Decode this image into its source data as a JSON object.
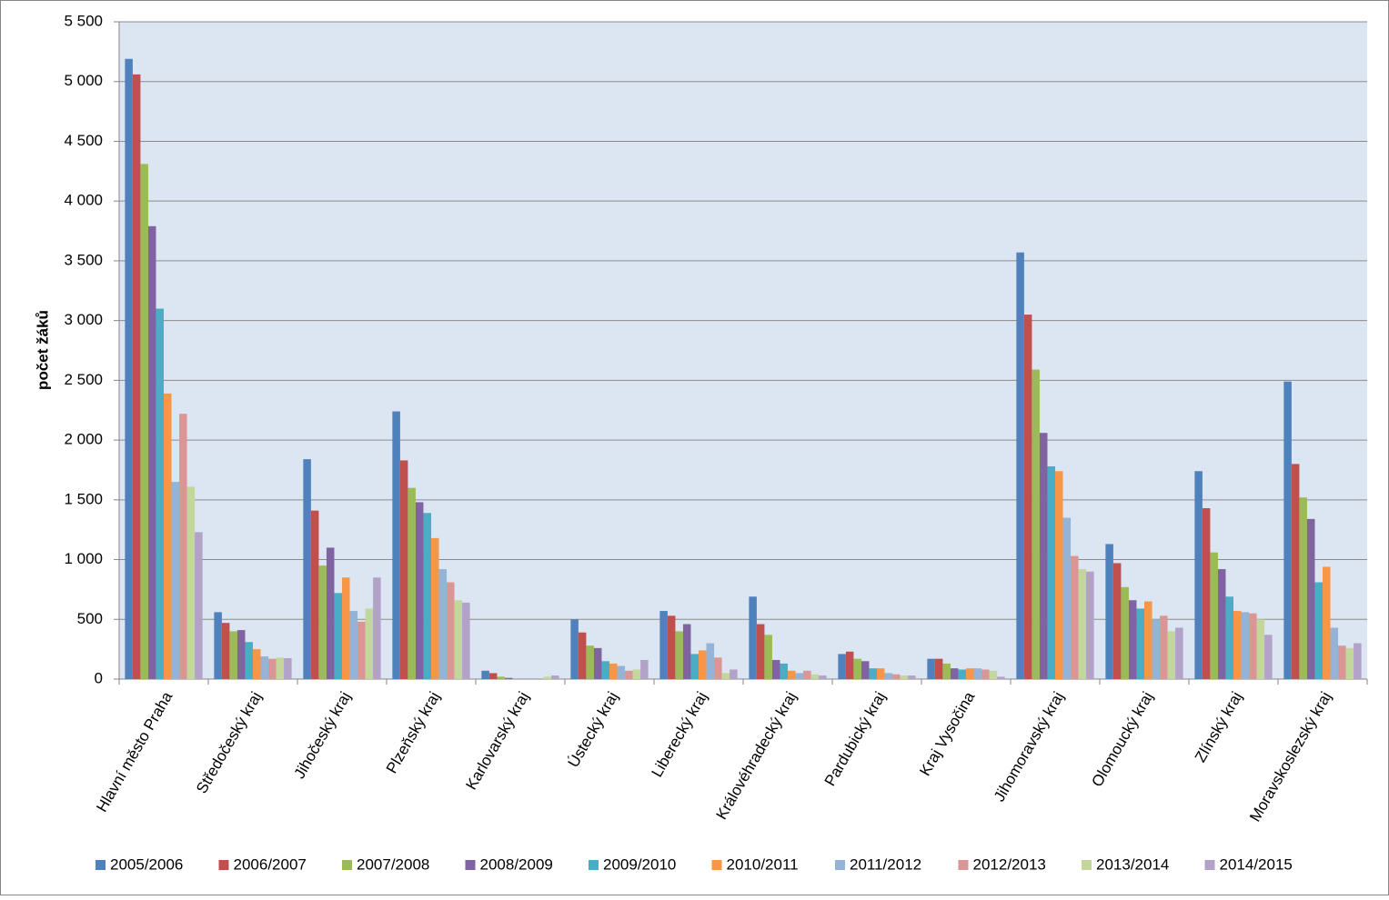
{
  "chart_data": {
    "type": "bar",
    "y_label": "počet žáků",
    "categories": [
      "Hlavní město Praha",
      "Středočeský kraj",
      "Jihočeský kraj",
      "Plzeňský kraj",
      "Karlovarský kraj",
      "Ústecký kraj",
      "Liberecký kraj",
      "Královéhradecký kraj",
      "Pardubický kraj",
      "Kraj Vysočina",
      "Jihomoravský kraj",
      "Olomoucký kraj",
      "Zlínský kraj",
      "Moravskoslezský kraj"
    ],
    "series": [
      {
        "name": "2005/2006",
        "color": "#4f81bd",
        "values": [
          5190,
          560,
          1840,
          2240,
          70,
          500,
          570,
          690,
          210,
          170,
          3570,
          1130,
          1740,
          2490
        ]
      },
      {
        "name": "2006/2007",
        "color": "#c0504d",
        "values": [
          5060,
          470,
          1410,
          1830,
          50,
          390,
          530,
          460,
          230,
          170,
          3050,
          970,
          1430,
          1800
        ]
      },
      {
        "name": "2007/2008",
        "color": "#9bbb59",
        "values": [
          4310,
          400,
          950,
          1600,
          20,
          280,
          400,
          370,
          170,
          130,
          2590,
          770,
          1060,
          1520
        ]
      },
      {
        "name": "2008/2009",
        "color": "#8064a2",
        "values": [
          3790,
          410,
          1100,
          1480,
          10,
          260,
          460,
          160,
          150,
          90,
          2060,
          660,
          920,
          1340
        ]
      },
      {
        "name": "2009/2010",
        "color": "#4bacc6",
        "values": [
          3100,
          310,
          720,
          1390,
          0,
          150,
          210,
          130,
          90,
          80,
          1780,
          590,
          690,
          810
        ]
      },
      {
        "name": "2010/2011",
        "color": "#f79646",
        "values": [
          2390,
          250,
          850,
          1180,
          0,
          130,
          240,
          70,
          90,
          90,
          1740,
          650,
          570,
          940
        ]
      },
      {
        "name": "2011/2012",
        "color": "#95b3d7",
        "values": [
          1650,
          190,
          570,
          920,
          0,
          110,
          300,
          50,
          50,
          90,
          1350,
          500,
          560,
          430
        ]
      },
      {
        "name": "2012/2013",
        "color": "#d99694",
        "values": [
          2220,
          170,
          480,
          810,
          0,
          70,
          180,
          70,
          40,
          80,
          1030,
          530,
          550,
          280
        ]
      },
      {
        "name": "2013/2014",
        "color": "#c3d69b",
        "values": [
          1610,
          180,
          590,
          660,
          20,
          80,
          50,
          40,
          30,
          70,
          920,
          400,
          500,
          260
        ]
      },
      {
        "name": "2014/2015",
        "color": "#b3a2c7",
        "values": [
          1230,
          175,
          850,
          640,
          30,
          160,
          80,
          30,
          30,
          20,
          900,
          430,
          370,
          300
        ]
      }
    ],
    "ylim": [
      0,
      5500
    ],
    "yticks": [
      0,
      500,
      {
        "value": 1000,
        "label": "1 000"
      },
      {
        "value": 1500,
        "label": "1 500"
      },
      {
        "value": 2000,
        "label": "2 000"
      },
      {
        "value": 2500,
        "label": "2 500"
      },
      {
        "value": 3000,
        "label": "3 000"
      },
      {
        "value": 3500,
        "label": "3 500"
      },
      {
        "value": 4000,
        "label": "4 000"
      },
      {
        "value": 4500,
        "label": "4 500"
      },
      {
        "value": 5000,
        "label": "5 000"
      },
      {
        "value": 5500,
        "label": "5 500"
      }
    ],
    "grid": true
  }
}
